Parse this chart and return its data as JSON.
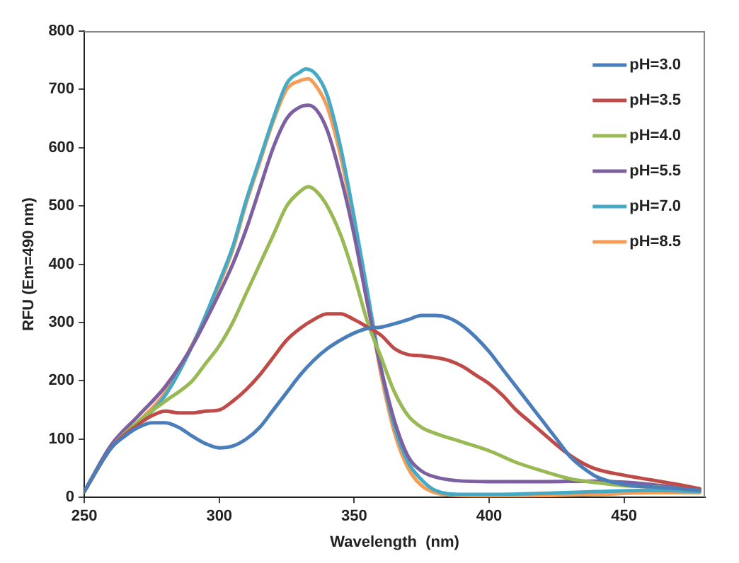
{
  "chart_data": {
    "type": "line",
    "xlabel": "Wavelength  (nm)",
    "ylabel": "RFU (Em=490 nm)",
    "xlim": [
      250,
      480
    ],
    "xticks": [
      250,
      300,
      350,
      400,
      450
    ],
    "ylim": [
      0,
      800
    ],
    "yticks": [
      0,
      100,
      200,
      300,
      400,
      500,
      600,
      700,
      800
    ],
    "grid": false,
    "legend": "top right",
    "marker": "none",
    "line_style": "solid",
    "series": [
      {
        "name": "pH=3.0",
        "color": "#4a7ebb",
        "x": [
          250,
          255,
          260,
          265,
          270,
          275,
          280,
          285,
          290,
          295,
          300,
          305,
          310,
          315,
          320,
          325,
          330,
          335,
          340,
          345,
          350,
          355,
          360,
          365,
          370,
          375,
          380,
          385,
          390,
          395,
          400,
          405,
          410,
          415,
          420,
          425,
          430,
          435,
          440,
          450,
          460,
          470,
          478
        ],
        "values": [
          10,
          50,
          85,
          105,
          120,
          128,
          128,
          120,
          105,
          92,
          85,
          88,
          100,
          120,
          150,
          180,
          210,
          235,
          255,
          270,
          282,
          290,
          292,
          298,
          305,
          312,
          312,
          308,
          295,
          275,
          250,
          220,
          190,
          160,
          130,
          100,
          70,
          50,
          35,
          22,
          18,
          15,
          12
        ]
      },
      {
        "name": "pH=3.5",
        "color": "#be4b48",
        "x": [
          250,
          260,
          270,
          275,
          280,
          285,
          290,
          295,
          300,
          305,
          310,
          315,
          320,
          325,
          330,
          335,
          340,
          345,
          350,
          355,
          360,
          365,
          370,
          375,
          380,
          385,
          390,
          395,
          400,
          405,
          410,
          415,
          420,
          425,
          430,
          435,
          440,
          450,
          460,
          470,
          478
        ],
        "values": [
          10,
          85,
          125,
          140,
          148,
          145,
          145,
          148,
          150,
          165,
          185,
          210,
          240,
          270,
          290,
          305,
          315,
          315,
          305,
          292,
          278,
          255,
          245,
          243,
          240,
          235,
          225,
          210,
          195,
          175,
          150,
          130,
          110,
          90,
          72,
          58,
          48,
          38,
          30,
          22,
          15
        ]
      },
      {
        "name": "pH=4.0",
        "color": "#98b954",
        "x": [
          250,
          260,
          270,
          280,
          290,
          295,
          300,
          305,
          310,
          315,
          320,
          325,
          330,
          333,
          336,
          340,
          345,
          350,
          355,
          360,
          365,
          370,
          375,
          380,
          390,
          400,
          410,
          420,
          430,
          440,
          450,
          460,
          478
        ],
        "values": [
          10,
          85,
          130,
          165,
          200,
          230,
          260,
          300,
          350,
          400,
          450,
          500,
          525,
          533,
          525,
          500,
          450,
          380,
          300,
          240,
          180,
          140,
          120,
          110,
          95,
          80,
          60,
          45,
          32,
          25,
          20,
          18,
          12
        ]
      },
      {
        "name": "pH=5.5",
        "color": "#7d60a0",
        "x": [
          250,
          260,
          270,
          280,
          290,
          300,
          305,
          310,
          315,
          320,
          325,
          330,
          333,
          336,
          340,
          345,
          350,
          355,
          360,
          365,
          370,
          375,
          380,
          390,
          400,
          420,
          440,
          450,
          460,
          478
        ],
        "values": [
          10,
          90,
          140,
          190,
          260,
          350,
          400,
          460,
          530,
          600,
          650,
          670,
          673,
          665,
          630,
          550,
          450,
          330,
          220,
          130,
          70,
          45,
          35,
          28,
          27,
          27,
          28,
          26,
          22,
          12
        ]
      },
      {
        "name": "pH=7.0",
        "color": "#46aac5",
        "x": [
          250,
          260,
          270,
          280,
          290,
          300,
          305,
          310,
          315,
          320,
          325,
          330,
          332,
          336,
          340,
          345,
          350,
          355,
          360,
          365,
          370,
          375,
          380,
          390,
          400,
          420,
          440,
          460,
          478
        ],
        "values": [
          10,
          85,
          125,
          175,
          260,
          370,
          430,
          510,
          580,
          650,
          710,
          730,
          735,
          725,
          690,
          600,
          480,
          350,
          220,
          120,
          60,
          30,
          12,
          5,
          5,
          7,
          10,
          12,
          10
        ]
      },
      {
        "name": "pH=8.5",
        "color": "#f59d56",
        "x": [
          250,
          260,
          270,
          280,
          290,
          300,
          305,
          310,
          315,
          320,
          325,
          330,
          333,
          336,
          340,
          345,
          350,
          355,
          360,
          365,
          370,
          375,
          380,
          390,
          400,
          420,
          440,
          460,
          478
        ],
        "values": [
          10,
          88,
          130,
          180,
          262,
          365,
          425,
          505,
          575,
          645,
          700,
          715,
          718,
          705,
          670,
          585,
          470,
          340,
          210,
          110,
          50,
          20,
          8,
          3,
          2,
          3,
          5,
          8,
          8
        ]
      }
    ]
  }
}
